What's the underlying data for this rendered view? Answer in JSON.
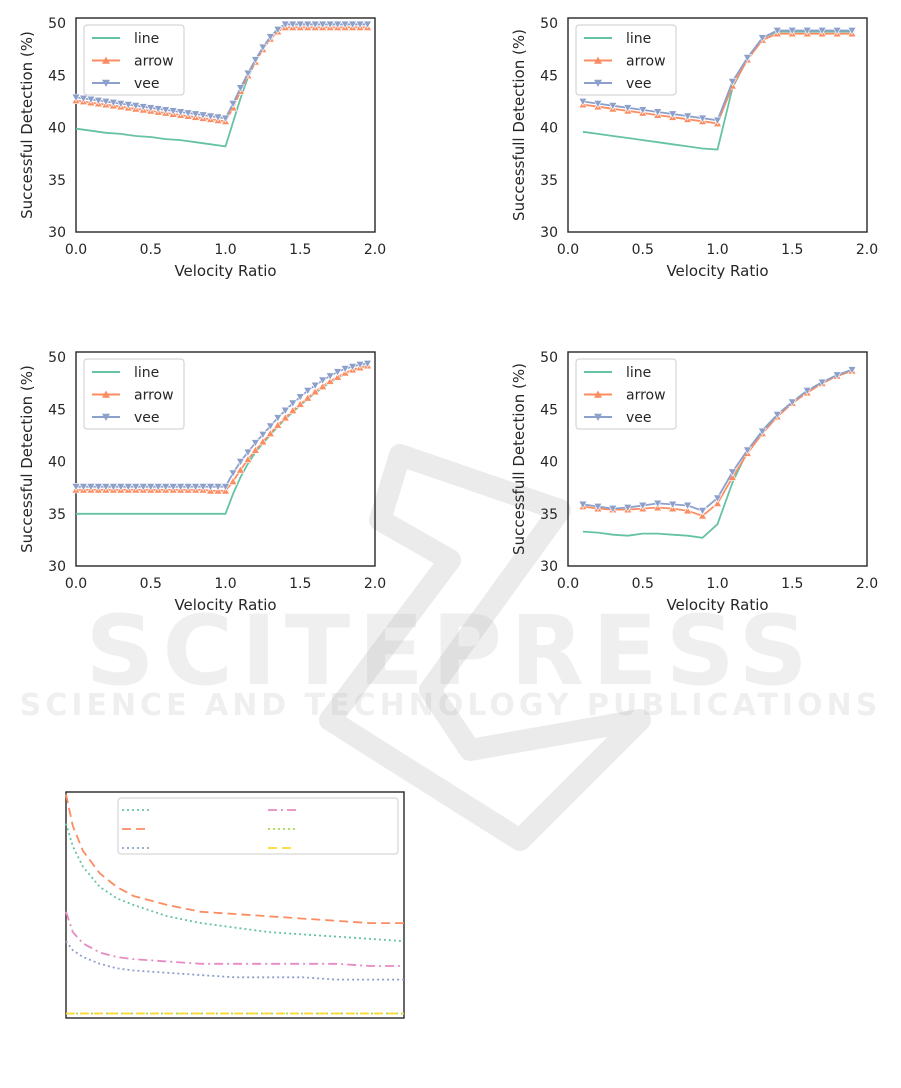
{
  "watermark": {
    "main": "SCITEPRESS",
    "sub": "SCIENCE AND TECHNOLOGY PUBLICATIONS"
  },
  "chart_data": [
    {
      "type": "line",
      "xlabel": "Velocity Ratio",
      "ylabel": "Successful Detection (%)",
      "xlim": [
        0,
        2
      ],
      "ylim": [
        30,
        50.5
      ],
      "xticks": [
        "0.0",
        "0.5",
        "1.0",
        "1.5",
        "2.0"
      ],
      "yticks": [
        "30",
        "35",
        "40",
        "45",
        "50"
      ],
      "legend": "top-left",
      "grid": false,
      "series": [
        {
          "name": "line",
          "color": "#66c2a5",
          "marker": "none",
          "x": [
            0,
            0.1,
            0.2,
            0.3,
            0.4,
            0.5,
            0.6,
            0.7,
            0.8,
            0.9,
            1.0,
            1.05,
            1.1,
            1.15,
            1.2,
            1.25,
            1.3,
            1.35,
            1.4,
            1.5,
            1.6,
            1.7,
            1.8,
            1.9,
            1.95
          ],
          "y": [
            39.9,
            39.7,
            39.5,
            39.4,
            39.2,
            39.1,
            38.9,
            38.8,
            38.6,
            38.4,
            38.2,
            40.5,
            42.8,
            44.8,
            46.3,
            47.5,
            48.6,
            49.5,
            49.9,
            49.9,
            49.9,
            49.9,
            49.9,
            49.9,
            49.9
          ]
        },
        {
          "name": "arrow",
          "color": "#fc8d62",
          "marker": "triangle-up",
          "x": [
            0,
            0.05,
            0.1,
            0.15,
            0.2,
            0.25,
            0.3,
            0.35,
            0.4,
            0.45,
            0.5,
            0.55,
            0.6,
            0.65,
            0.7,
            0.75,
            0.8,
            0.85,
            0.9,
            0.95,
            1.0,
            1.05,
            1.1,
            1.15,
            1.2,
            1.25,
            1.3,
            1.35,
            1.4,
            1.45,
            1.5,
            1.55,
            1.6,
            1.65,
            1.7,
            1.75,
            1.8,
            1.85,
            1.9,
            1.95
          ],
          "y": [
            42.6,
            42.5,
            42.4,
            42.3,
            42.2,
            42.1,
            42.0,
            41.9,
            41.8,
            41.7,
            41.6,
            41.5,
            41.4,
            41.3,
            41.2,
            41.1,
            41.0,
            40.9,
            40.8,
            40.7,
            40.6,
            41.9,
            43.5,
            45.0,
            46.3,
            47.5,
            48.5,
            49.2,
            49.6,
            49.6,
            49.6,
            49.6,
            49.6,
            49.6,
            49.6,
            49.6,
            49.6,
            49.6,
            49.6,
            49.6
          ]
        },
        {
          "name": "vee",
          "color": "#8da0cb",
          "marker": "triangle-down",
          "x": [
            0,
            0.05,
            0.1,
            0.15,
            0.2,
            0.25,
            0.3,
            0.35,
            0.4,
            0.45,
            0.5,
            0.55,
            0.6,
            0.65,
            0.7,
            0.75,
            0.8,
            0.85,
            0.9,
            0.95,
            1.0,
            1.05,
            1.1,
            1.15,
            1.2,
            1.25,
            1.3,
            1.35,
            1.4,
            1.45,
            1.5,
            1.55,
            1.6,
            1.65,
            1.7,
            1.75,
            1.8,
            1.85,
            1.9,
            1.95
          ],
          "y": [
            42.9,
            42.8,
            42.7,
            42.6,
            42.5,
            42.4,
            42.3,
            42.2,
            42.1,
            42.0,
            41.9,
            41.8,
            41.7,
            41.6,
            41.5,
            41.4,
            41.3,
            41.2,
            41.1,
            41.0,
            40.9,
            42.3,
            43.8,
            45.2,
            46.5,
            47.7,
            48.7,
            49.4,
            49.9,
            49.9,
            49.9,
            49.9,
            49.9,
            49.9,
            49.9,
            49.9,
            49.9,
            49.9,
            49.9,
            49.9
          ]
        }
      ]
    },
    {
      "type": "line",
      "xlabel": "Velocity Ratio",
      "ylabel": "Successfull Detection (%)",
      "xlim": [
        0,
        2
      ],
      "ylim": [
        30,
        50.5
      ],
      "xticks": [
        "0.0",
        "0.5",
        "1.0",
        "1.5",
        "2.0"
      ],
      "yticks": [
        "30",
        "35",
        "40",
        "45",
        "50"
      ],
      "legend": "top-left",
      "grid": false,
      "series": [
        {
          "name": "line",
          "color": "#66c2a5",
          "marker": "none",
          "x": [
            0.1,
            0.2,
            0.3,
            0.4,
            0.5,
            0.6,
            0.7,
            0.8,
            0.9,
            1.0,
            1.1,
            1.2,
            1.3,
            1.4,
            1.5,
            1.6,
            1.7,
            1.8,
            1.9
          ],
          "y": [
            39.6,
            39.4,
            39.2,
            39.0,
            38.8,
            38.6,
            38.4,
            38.2,
            38.0,
            37.9,
            43.8,
            46.6,
            48.6,
            49.2,
            49.2,
            49.2,
            49.2,
            49.2,
            49.2
          ]
        },
        {
          "name": "arrow",
          "color": "#fc8d62",
          "marker": "triangle-up",
          "x": [
            0.1,
            0.2,
            0.3,
            0.4,
            0.5,
            0.6,
            0.7,
            0.8,
            0.9,
            1.0,
            1.1,
            1.2,
            1.3,
            1.4,
            1.5,
            1.6,
            1.7,
            1.8,
            1.9
          ],
          "y": [
            42.2,
            42.0,
            41.8,
            41.6,
            41.4,
            41.2,
            41.0,
            40.8,
            40.6,
            40.4,
            44.0,
            46.5,
            48.4,
            49.0,
            49.0,
            49.0,
            49.0,
            49.0,
            49.0
          ]
        },
        {
          "name": "vee",
          "color": "#8da0cb",
          "marker": "triangle-down",
          "x": [
            0.1,
            0.2,
            0.3,
            0.4,
            0.5,
            0.6,
            0.7,
            0.8,
            0.9,
            1.0,
            1.1,
            1.2,
            1.3,
            1.4,
            1.5,
            1.6,
            1.7,
            1.8,
            1.9
          ],
          "y": [
            42.5,
            42.3,
            42.1,
            41.9,
            41.7,
            41.5,
            41.3,
            41.1,
            40.9,
            40.7,
            44.4,
            46.7,
            48.6,
            49.3,
            49.3,
            49.3,
            49.3,
            49.3,
            49.3
          ]
        }
      ]
    },
    {
      "type": "line",
      "xlabel": "Velocity Ratio",
      "ylabel": "Successful Detection (%)",
      "xlim": [
        0,
        2
      ],
      "ylim": [
        30,
        50.5
      ],
      "xticks": [
        "0.0",
        "0.5",
        "1.0",
        "1.5",
        "2.0"
      ],
      "yticks": [
        "30",
        "35",
        "40",
        "45",
        "50"
      ],
      "legend": "top-left",
      "grid": false,
      "series": [
        {
          "name": "line",
          "color": "#66c2a5",
          "marker": "none",
          "x": [
            0,
            0.2,
            0.4,
            0.6,
            0.8,
            1.0,
            1.05,
            1.1,
            1.15,
            1.2,
            1.3,
            1.4,
            1.5,
            1.6,
            1.7,
            1.8,
            1.9,
            1.95
          ],
          "y": [
            35.0,
            35.0,
            35.0,
            35.0,
            35.0,
            35.0,
            36.9,
            38.5,
            39.8,
            40.9,
            42.6,
            44.1,
            45.4,
            46.6,
            47.6,
            48.4,
            49.0,
            49.2
          ]
        },
        {
          "name": "arrow",
          "color": "#fc8d62",
          "marker": "triangle-up",
          "x": [
            0,
            0.05,
            0.1,
            0.15,
            0.2,
            0.25,
            0.3,
            0.35,
            0.4,
            0.45,
            0.5,
            0.55,
            0.6,
            0.65,
            0.7,
            0.75,
            0.8,
            0.85,
            0.9,
            0.95,
            1.0,
            1.05,
            1.1,
            1.15,
            1.2,
            1.25,
            1.3,
            1.35,
            1.4,
            1.45,
            1.5,
            1.55,
            1.6,
            1.65,
            1.7,
            1.75,
            1.8,
            1.85,
            1.9,
            1.95
          ],
          "y": [
            37.3,
            37.3,
            37.3,
            37.3,
            37.3,
            37.3,
            37.3,
            37.3,
            37.3,
            37.3,
            37.3,
            37.3,
            37.3,
            37.3,
            37.3,
            37.3,
            37.3,
            37.3,
            37.2,
            37.2,
            37.2,
            38.1,
            39.2,
            40.2,
            41.1,
            41.9,
            42.7,
            43.5,
            44.2,
            44.9,
            45.5,
            46.1,
            46.7,
            47.2,
            47.7,
            48.1,
            48.5,
            48.8,
            49.0,
            49.2
          ]
        },
        {
          "name": "vee",
          "color": "#8da0cb",
          "marker": "triangle-down",
          "x": [
            0,
            0.05,
            0.1,
            0.15,
            0.2,
            0.25,
            0.3,
            0.35,
            0.4,
            0.45,
            0.5,
            0.55,
            0.6,
            0.65,
            0.7,
            0.75,
            0.8,
            0.85,
            0.9,
            0.95,
            1.0,
            1.05,
            1.1,
            1.15,
            1.2,
            1.25,
            1.3,
            1.35,
            1.4,
            1.45,
            1.5,
            1.55,
            1.6,
            1.65,
            1.7,
            1.75,
            1.8,
            1.85,
            1.9,
            1.95
          ],
          "y": [
            37.6,
            37.6,
            37.6,
            37.6,
            37.6,
            37.6,
            37.6,
            37.6,
            37.6,
            37.6,
            37.6,
            37.6,
            37.6,
            37.6,
            37.6,
            37.6,
            37.6,
            37.6,
            37.6,
            37.6,
            37.6,
            38.9,
            40.0,
            40.9,
            41.8,
            42.6,
            43.4,
            44.2,
            44.9,
            45.6,
            46.2,
            46.8,
            47.3,
            47.8,
            48.2,
            48.6,
            48.9,
            49.1,
            49.3,
            49.4
          ]
        }
      ]
    },
    {
      "type": "line",
      "xlabel": "Velocity Ratio",
      "ylabel": "Successfull Detection (%)",
      "xlim": [
        0,
        2
      ],
      "ylim": [
        30,
        50.5
      ],
      "xticks": [
        "0.0",
        "0.5",
        "1.0",
        "1.5",
        "2.0"
      ],
      "yticks": [
        "30",
        "35",
        "40",
        "45",
        "50"
      ],
      "legend": "top-left",
      "grid": false,
      "series": [
        {
          "name": "line",
          "color": "#66c2a5",
          "marker": "none",
          "x": [
            0.1,
            0.2,
            0.3,
            0.4,
            0.5,
            0.6,
            0.7,
            0.8,
            0.9,
            1.0,
            1.1,
            1.2,
            1.3,
            1.4,
            1.5,
            1.6,
            1.7,
            1.8,
            1.9
          ],
          "y": [
            33.3,
            33.2,
            33.0,
            32.9,
            33.1,
            33.1,
            33.0,
            32.9,
            32.7,
            34.0,
            38.0,
            41.0,
            43.0,
            44.5,
            45.7,
            46.8,
            47.6,
            48.2,
            48.7
          ]
        },
        {
          "name": "arrow",
          "color": "#fc8d62",
          "marker": "triangle-up",
          "x": [
            0.1,
            0.2,
            0.3,
            0.4,
            0.5,
            0.6,
            0.7,
            0.8,
            0.9,
            1.0,
            1.1,
            1.2,
            1.3,
            1.4,
            1.5,
            1.6,
            1.7,
            1.8,
            1.9
          ],
          "y": [
            35.7,
            35.5,
            35.4,
            35.4,
            35.5,
            35.6,
            35.5,
            35.3,
            34.8,
            36.0,
            38.5,
            40.8,
            42.7,
            44.3,
            45.6,
            46.6,
            47.5,
            48.2,
            48.7
          ]
        },
        {
          "name": "vee",
          "color": "#8da0cb",
          "marker": "triangle-down",
          "x": [
            0.1,
            0.2,
            0.3,
            0.4,
            0.5,
            0.6,
            0.7,
            0.8,
            0.9,
            1.0,
            1.1,
            1.2,
            1.3,
            1.4,
            1.5,
            1.6,
            1.7,
            1.8,
            1.9
          ],
          "y": [
            35.9,
            35.7,
            35.5,
            35.6,
            35.8,
            36.0,
            35.9,
            35.8,
            35.3,
            36.5,
            39.0,
            41.1,
            42.9,
            44.5,
            45.7,
            46.8,
            47.6,
            48.3,
            48.8
          ]
        }
      ]
    },
    {
      "type": "line",
      "xlabel": "",
      "ylabel": "",
      "xlim": [
        0,
        1
      ],
      "ylim": [
        0,
        1
      ],
      "xticks": [],
      "yticks": [],
      "legend": "top",
      "grid": false,
      "series": [
        {
          "name": "",
          "color": "#66c2a5",
          "dash": "dotted",
          "x": [
            0,
            0.02,
            0.05,
            0.1,
            0.15,
            0.2,
            0.3,
            0.4,
            0.5,
            0.6,
            0.7,
            0.8,
            0.9,
            1.0
          ],
          "y": [
            0.86,
            0.76,
            0.67,
            0.58,
            0.53,
            0.5,
            0.45,
            0.42,
            0.4,
            0.38,
            0.37,
            0.36,
            0.35,
            0.34
          ]
        },
        {
          "name": "",
          "color": "#fc8d62",
          "dash": "dashed",
          "x": [
            0,
            0.02,
            0.05,
            0.1,
            0.15,
            0.2,
            0.3,
            0.4,
            0.5,
            0.6,
            0.7,
            0.8,
            0.9,
            1.0
          ],
          "y": [
            0.99,
            0.85,
            0.74,
            0.64,
            0.58,
            0.54,
            0.5,
            0.47,
            0.46,
            0.45,
            0.44,
            0.43,
            0.42,
            0.42
          ]
        },
        {
          "name": "",
          "color": "#8da0cb",
          "dash": "dotted",
          "x": [
            0,
            0.02,
            0.05,
            0.1,
            0.15,
            0.2,
            0.3,
            0.4,
            0.5,
            0.6,
            0.7,
            0.8,
            0.9,
            1.0
          ],
          "y": [
            0.34,
            0.3,
            0.27,
            0.24,
            0.22,
            0.21,
            0.2,
            0.19,
            0.18,
            0.18,
            0.18,
            0.17,
            0.17,
            0.17
          ]
        },
        {
          "name": "",
          "color": "#e78ac3",
          "dash": "dashdot",
          "x": [
            0,
            0.02,
            0.05,
            0.1,
            0.15,
            0.2,
            0.3,
            0.4,
            0.5,
            0.6,
            0.7,
            0.8,
            0.9,
            1.0
          ],
          "y": [
            0.47,
            0.38,
            0.33,
            0.29,
            0.27,
            0.26,
            0.25,
            0.24,
            0.24,
            0.24,
            0.24,
            0.24,
            0.23,
            0.23
          ]
        },
        {
          "name": "",
          "color": "#a6d854",
          "dash": "dotted",
          "x": [
            0,
            1
          ],
          "y": [
            0.02,
            0.02
          ]
        },
        {
          "name": "",
          "color": "#ffd92f",
          "dash": "dashed",
          "x": [
            0,
            1
          ],
          "y": [
            0.02,
            0.02
          ]
        }
      ]
    }
  ]
}
